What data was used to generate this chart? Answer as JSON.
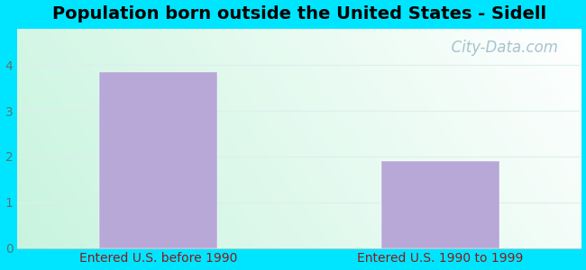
{
  "title": "Population born outside the United States - Sidell",
  "categories": [
    "Entered U.S. before 1990",
    "Entered U.S. 1990 to 1999"
  ],
  "values": [
    3.85,
    1.9
  ],
  "bar_color": "#b8a8d8",
  "ylim": [
    0,
    4.8
  ],
  "yticks": [
    0,
    1,
    2,
    3,
    4
  ],
  "xlabel_color": "#8b1a1a",
  "title_fontsize": 14,
  "tick_fontsize": 10,
  "border_color": "#00e5ff",
  "watermark": "  City-Data.com",
  "watermark_color": "#9ab8c8",
  "watermark_fontsize": 12,
  "grid_color": "#ddeeee",
  "ytick_color": "#557777"
}
